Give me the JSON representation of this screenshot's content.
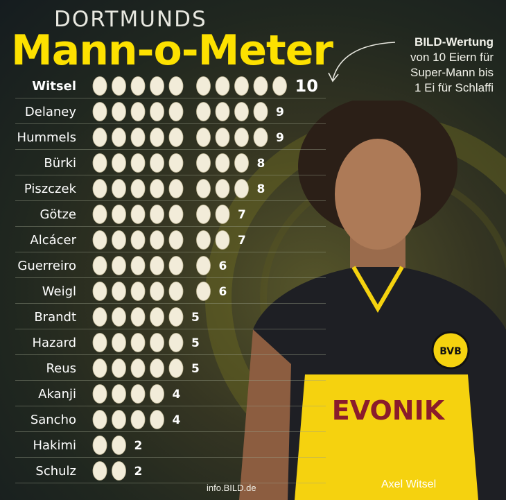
{
  "header": {
    "kicker": "DORTMUNDS",
    "title": "Mann-o-Meter"
  },
  "note": {
    "strong": "BILD-Wertung",
    "lines": [
      "von 10 Eiern für",
      "Super-Mann bis",
      "1 Ei für Schlaffi"
    ]
  },
  "caption": {
    "player_name": "Axel Witsel",
    "source": "info.BILD.de"
  },
  "colors": {
    "accent": "#fde100",
    "egg": "#f2ecd9",
    "label": "#ffffff"
  },
  "chart_data": {
    "type": "bar",
    "unit": "eggs",
    "max": 10,
    "categories": [
      "Witsel",
      "Delaney",
      "Hummels",
      "Bürki",
      "Piszczek",
      "Götze",
      "Alcácer",
      "Guerreiro",
      "Weigl",
      "Brandt",
      "Hazard",
      "Reus",
      "Akanji",
      "Sancho",
      "Hakimi",
      "Schulz"
    ],
    "values": [
      10,
      9,
      9,
      8,
      8,
      7,
      7,
      6,
      6,
      5,
      5,
      5,
      4,
      4,
      2,
      2
    ],
    "highlight": "Witsel"
  }
}
